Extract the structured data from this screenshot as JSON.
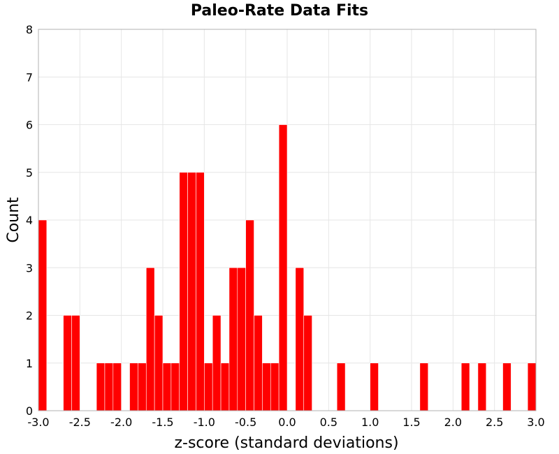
{
  "chart_data": {
    "type": "bar",
    "title": "Paleo-Rate Data Fits",
    "xlabel": "z-score (standard deviations)",
    "ylabel": "Count",
    "xlim": [
      -3.0,
      3.0
    ],
    "ylim": [
      0,
      8
    ],
    "xticks": [
      "-3.0",
      "-2.5",
      "-2.0",
      "-1.5",
      "-1.0",
      "-0.5",
      "0.0",
      "0.5",
      "1.0",
      "1.5",
      "2.0",
      "2.5",
      "3.0"
    ],
    "yticks": [
      "0",
      "1",
      "2",
      "3",
      "4",
      "5",
      "6",
      "7",
      "8"
    ],
    "grid": true,
    "legend": "none",
    "bar_color": "#ff0000",
    "bin_width": 0.1,
    "bins": [
      {
        "x": -2.95,
        "count": 4
      },
      {
        "x": -2.65,
        "count": 2
      },
      {
        "x": -2.55,
        "count": 2
      },
      {
        "x": -2.25,
        "count": 1
      },
      {
        "x": -2.15,
        "count": 1
      },
      {
        "x": -2.05,
        "count": 1
      },
      {
        "x": -1.85,
        "count": 1
      },
      {
        "x": -1.75,
        "count": 1
      },
      {
        "x": -1.65,
        "count": 3
      },
      {
        "x": -1.55,
        "count": 2
      },
      {
        "x": -1.45,
        "count": 1
      },
      {
        "x": -1.35,
        "count": 1
      },
      {
        "x": -1.25,
        "count": 5
      },
      {
        "x": -1.15,
        "count": 5
      },
      {
        "x": -1.05,
        "count": 5
      },
      {
        "x": -0.95,
        "count": 1
      },
      {
        "x": -0.85,
        "count": 2
      },
      {
        "x": -0.75,
        "count": 1
      },
      {
        "x": -0.65,
        "count": 3
      },
      {
        "x": -0.55,
        "count": 3
      },
      {
        "x": -0.45,
        "count": 4
      },
      {
        "x": -0.35,
        "count": 2
      },
      {
        "x": -0.25,
        "count": 1
      },
      {
        "x": -0.15,
        "count": 1
      },
      {
        "x": -0.05,
        "count": 6
      },
      {
        "x": 0.15,
        "count": 3
      },
      {
        "x": 0.25,
        "count": 2
      },
      {
        "x": 0.65,
        "count": 1
      },
      {
        "x": 1.05,
        "count": 1
      },
      {
        "x": 1.65,
        "count": 1
      },
      {
        "x": 2.15,
        "count": 1
      },
      {
        "x": 2.35,
        "count": 1
      },
      {
        "x": 2.65,
        "count": 1
      },
      {
        "x": 2.95,
        "count": 1
      }
    ]
  }
}
